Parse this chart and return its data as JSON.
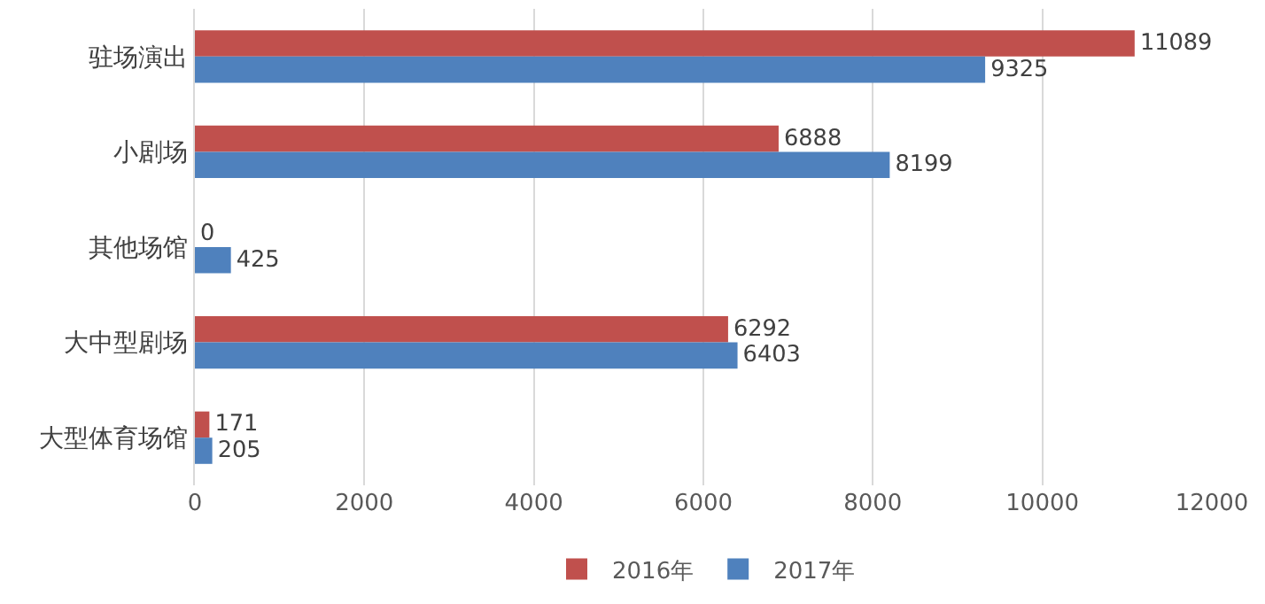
{
  "chart_data": {
    "type": "bar",
    "orientation": "horizontal",
    "categories": [
      "驻场演出",
      "小剧场",
      "其他场馆",
      "大中型剧场",
      "大型体育场馆"
    ],
    "series": [
      {
        "name": "2016年",
        "color": "#c0504d",
        "values": [
          11089,
          6888,
          0,
          6292,
          171
        ]
      },
      {
        "name": "2017年",
        "color": "#4f81bd",
        "values": [
          9325,
          8199,
          425,
          6403,
          205
        ]
      }
    ],
    "xlim": [
      0,
      12000
    ],
    "xticks": [
      0,
      2000,
      4000,
      6000,
      8000,
      10000,
      12000
    ],
    "grid": "x",
    "legend": "bottom",
    "data_labels": true
  }
}
